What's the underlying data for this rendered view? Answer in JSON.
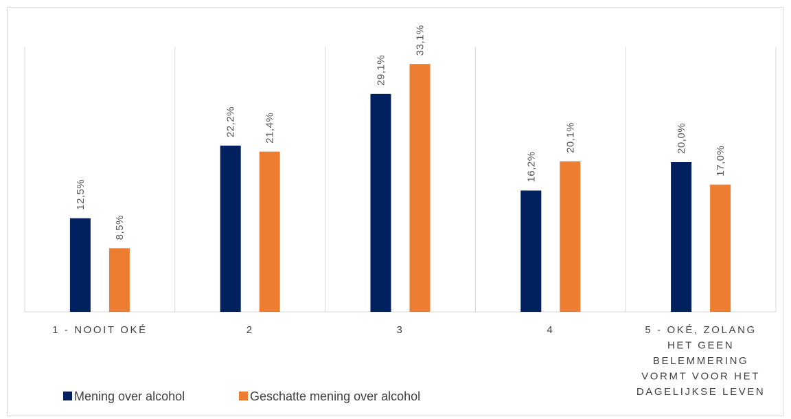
{
  "chart_data": {
    "type": "bar",
    "categories": [
      [
        "1 - NOOIT OKÉ"
      ],
      [
        "2"
      ],
      [
        "3"
      ],
      [
        "4"
      ],
      [
        "5 - OKÉ, ZOLANG",
        "HET GEEN",
        "BELEMMERING",
        "VORMT VOOR HET",
        "DAGELIJKSE LEVEN"
      ]
    ],
    "series": [
      {
        "name": "Mening over alcohol",
        "color": "#002060",
        "values": [
          12.5,
          22.2,
          29.1,
          16.2,
          20.0
        ],
        "labels": [
          "12,5%",
          "22,2%",
          "29,1%",
          "16,2%",
          "20,0%"
        ]
      },
      {
        "name": "Geschatte mening over alcohol",
        "color": "#ED7D31",
        "values": [
          8.5,
          21.4,
          33.1,
          20.1,
          17.0
        ],
        "labels": [
          "8,5%",
          "21,4%",
          "33,1%",
          "20,1%",
          "17,0%"
        ]
      }
    ],
    "ylim": [
      0,
      35
    ],
    "grid": "vertical-separators",
    "legend": "bottom-left"
  }
}
